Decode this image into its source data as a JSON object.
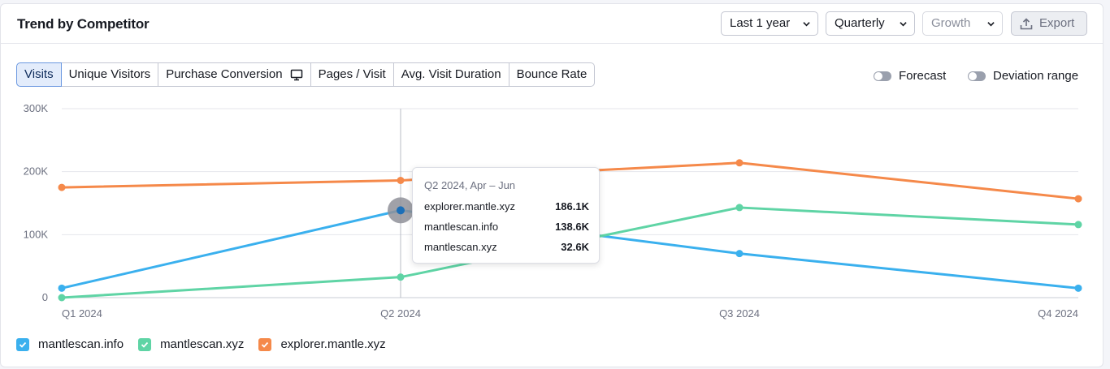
{
  "header": {
    "title": "Trend by Competitor",
    "period": "Last 1 year",
    "granularity": "Quarterly",
    "metric_mode": "Growth",
    "export_label": "Export"
  },
  "tabs": [
    {
      "label": "Visits",
      "active": true
    },
    {
      "label": "Unique Visitors"
    },
    {
      "label": "Purchase Conversion",
      "icon": "monitor-icon"
    },
    {
      "label": "Pages / Visit"
    },
    {
      "label": "Avg. Visit Duration"
    },
    {
      "label": "Bounce Rate"
    }
  ],
  "toggles": {
    "forecast": "Forecast",
    "deviation": "Deviation range"
  },
  "tooltip": {
    "title": "Q2 2024, Apr – Jun",
    "rows": [
      {
        "name": "explorer.mantle.xyz",
        "value": "186.1K"
      },
      {
        "name": "mantlescan.info",
        "value": "138.6K"
      },
      {
        "name": "mantlescan.xyz",
        "value": "32.6K"
      }
    ]
  },
  "chart_data": {
    "type": "line",
    "x": [
      "Q1 2024",
      "Q2 2024",
      "Q3 2024",
      "Q4 2024"
    ],
    "y_ticks": [
      "0",
      "100K",
      "200K",
      "300K"
    ],
    "ylim": [
      0,
      300000
    ],
    "grid": true,
    "legend_position": "bottom-left",
    "hover_category": "Q2 2024",
    "series": [
      {
        "name": "mantlescan.info",
        "color": "#3ab0ee",
        "values": [
          15000,
          138600,
          70000,
          15000
        ]
      },
      {
        "name": "mantlescan.xyz",
        "color": "#5fd4a5",
        "values": [
          0,
          32600,
          143000,
          116000
        ]
      },
      {
        "name": "explorer.mantle.xyz",
        "color": "#f5894a",
        "values": [
          175000,
          186100,
          214000,
          157000
        ]
      }
    ]
  }
}
